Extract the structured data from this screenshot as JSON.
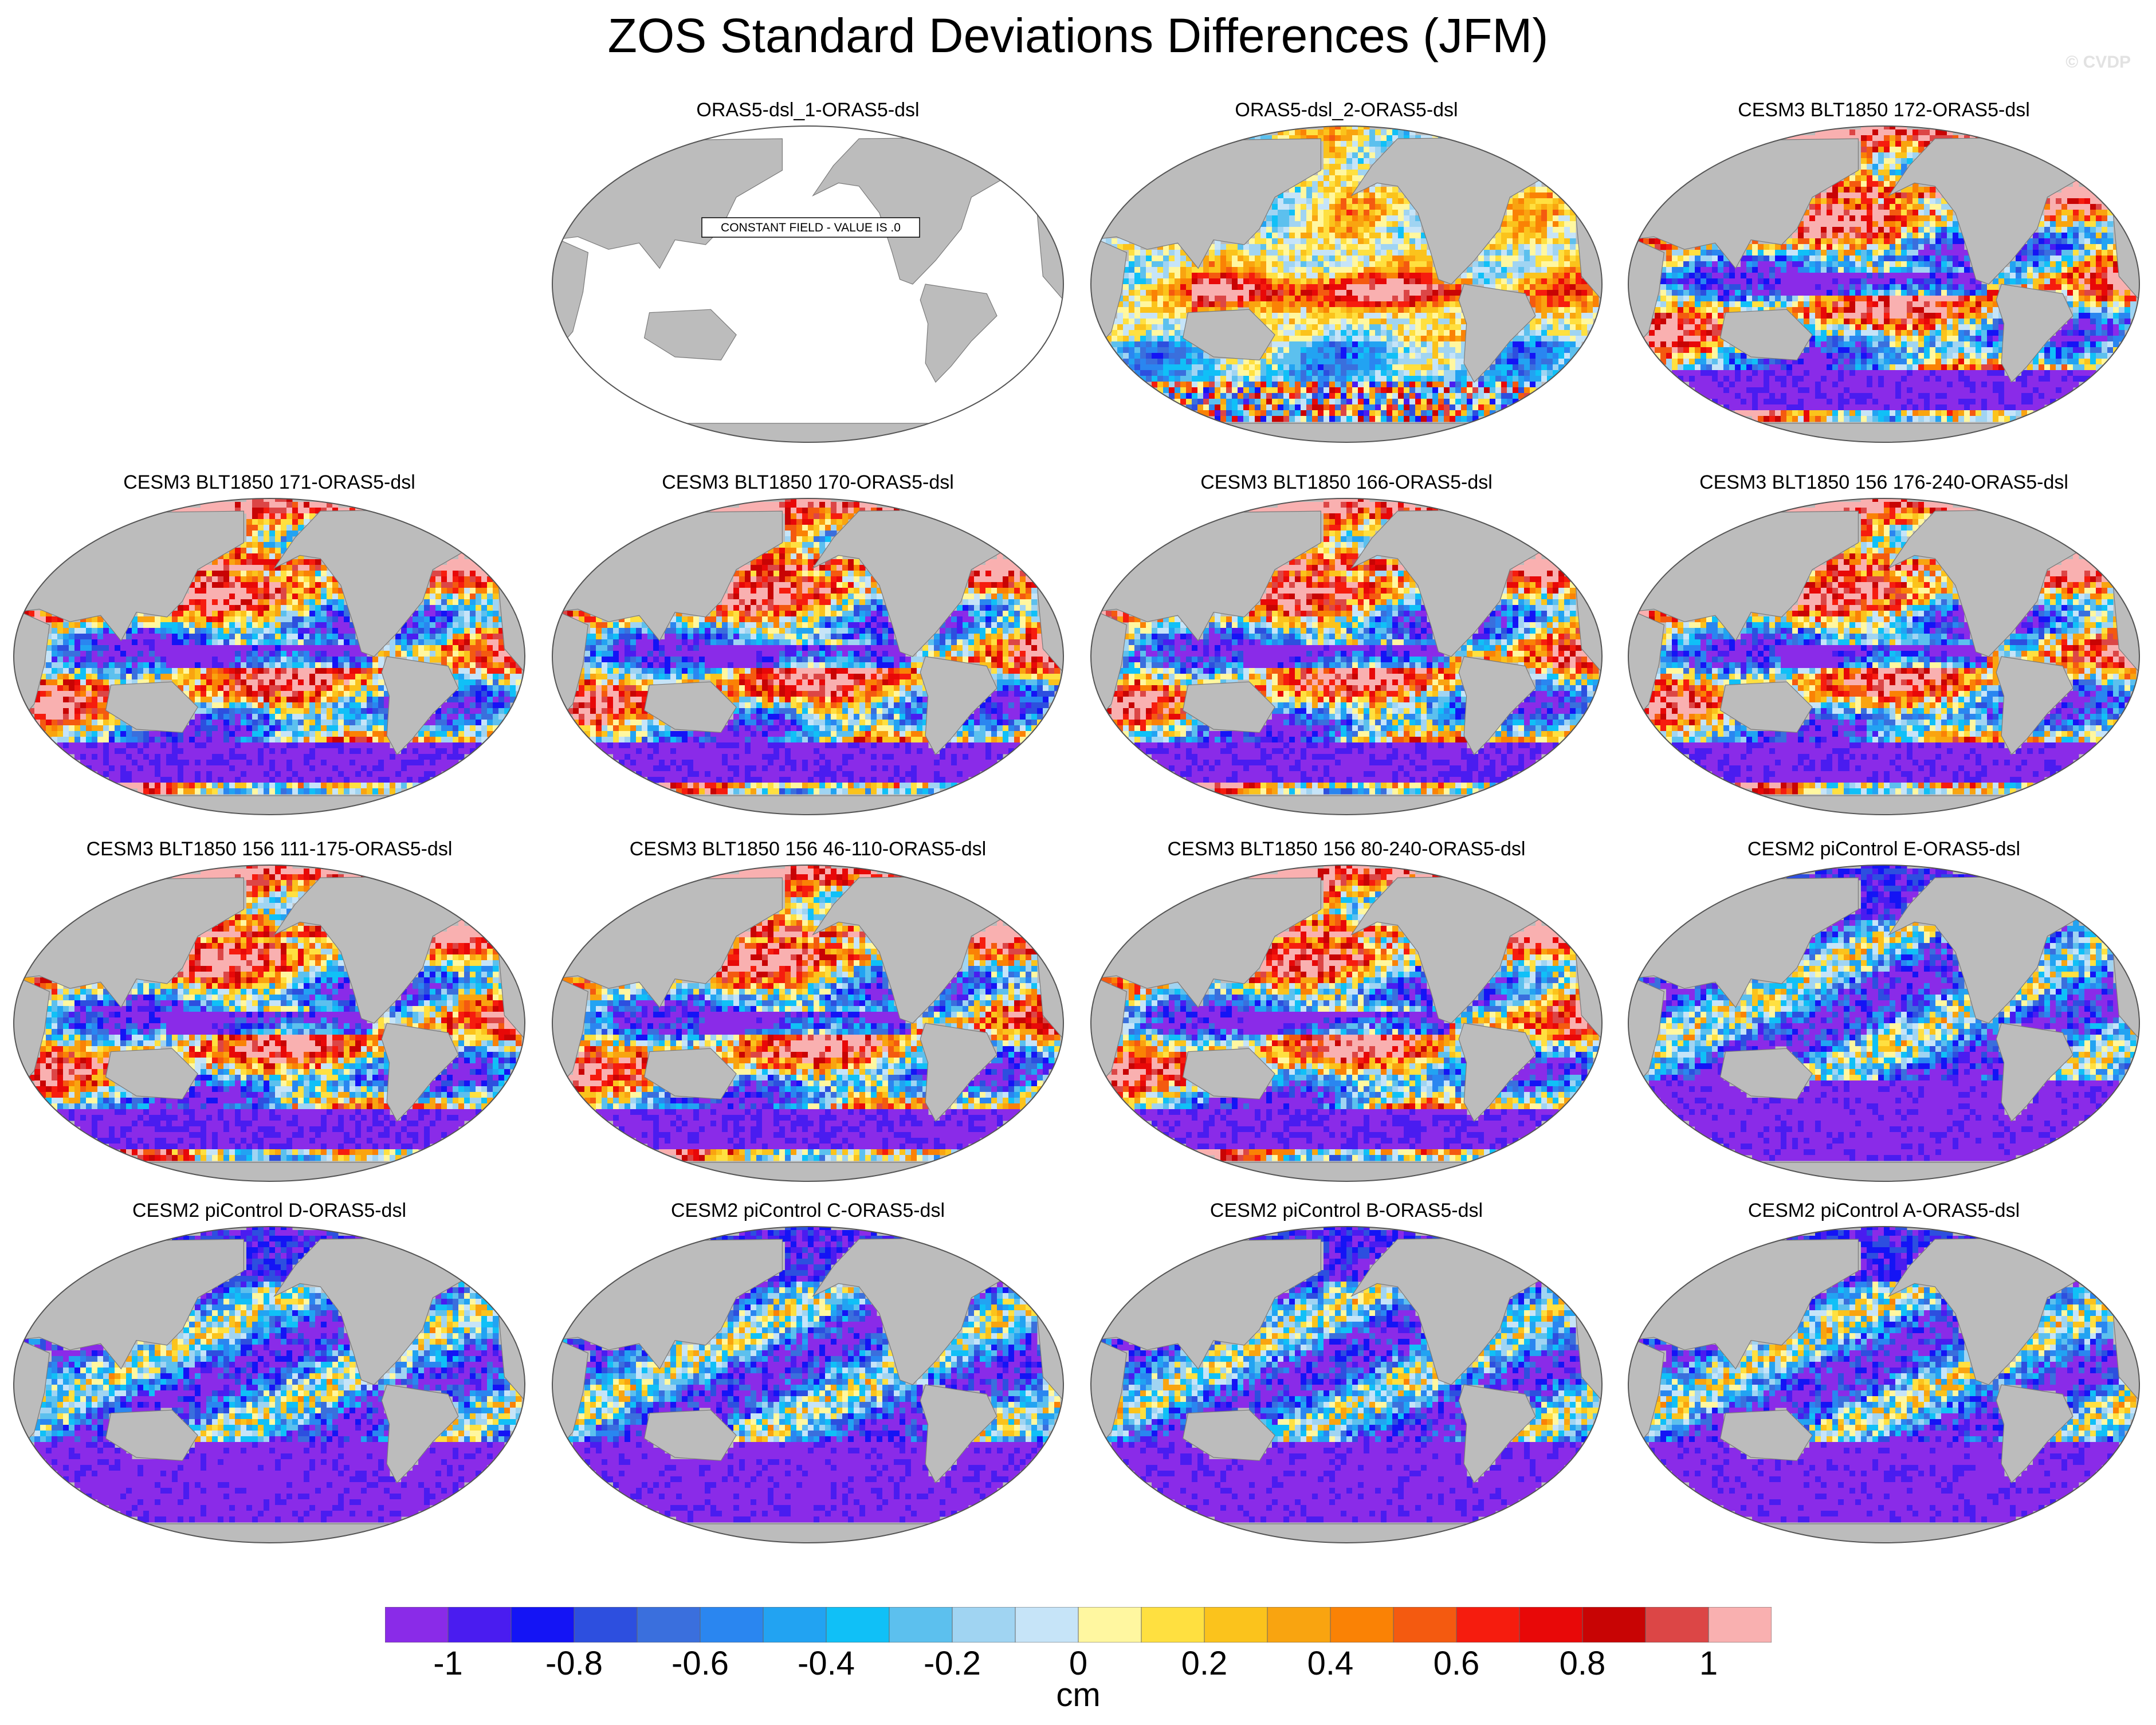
{
  "title": "ZOS Standard Deviations Differences (JFM)",
  "watermark": "© CVDP",
  "constant_field_label": "CONSTANT FIELD - VALUE IS .0",
  "units": "cm",
  "colorbar": {
    "colors": [
      "#8a2be8",
      "#4a1cf0",
      "#1414f5",
      "#2d4fdf",
      "#3a6fdd",
      "#2a86f0",
      "#22a3f2",
      "#10c0f7",
      "#5cc0ee",
      "#a0d4f2",
      "#c6e4f8",
      "#fff7a0",
      "#ffe040",
      "#fbc31c",
      "#f9a410",
      "#fa8205",
      "#f45a10",
      "#f61c0e",
      "#e80808",
      "#c80404",
      "#dc4646",
      "#f9b0b0"
    ],
    "tick_labels": [
      "-1",
      "-0.8",
      "-0.6",
      "-0.4",
      "-0.2",
      "0",
      "0.2",
      "0.4",
      "0.6",
      "0.8",
      "1"
    ],
    "levels": [
      -1,
      -0.9,
      -0.8,
      -0.7,
      -0.6,
      -0.5,
      -0.4,
      -0.3,
      -0.2,
      -0.1,
      0,
      0.1,
      0.2,
      0.3,
      0.4,
      0.5,
      0.6,
      0.7,
      0.8,
      0.9,
      1
    ]
  },
  "panels": [
    {
      "title": "ORAS5-dsl_1-ORAS5-dsl",
      "constant": true
    },
    {
      "title": "ORAS5-dsl_2-ORAS5-dsl",
      "scheme": "oras"
    },
    {
      "title": "CESM3 BLT1850 172-ORAS5-dsl",
      "scheme": "cesm3"
    },
    {
      "title": "CESM3 BLT1850 171-ORAS5-dsl",
      "scheme": "cesm3"
    },
    {
      "title": "CESM3 BLT1850 170-ORAS5-dsl",
      "scheme": "cesm3"
    },
    {
      "title": "CESM3 BLT1850 166-ORAS5-dsl",
      "scheme": "cesm3"
    },
    {
      "title": "CESM3 BLT1850 156 176-240-ORAS5-dsl",
      "scheme": "cesm3"
    },
    {
      "title": "CESM3 BLT1850 156 111-175-ORAS5-dsl",
      "scheme": "cesm3"
    },
    {
      "title": "CESM3 BLT1850 156 46-110-ORAS5-dsl",
      "scheme": "cesm3"
    },
    {
      "title": "CESM3 BLT1850 156 80-240-ORAS5-dsl",
      "scheme": "cesm3"
    },
    {
      "title": "CESM2 piControl E-ORAS5-dsl",
      "scheme": "cesm2"
    },
    {
      "title": "CESM2 piControl D-ORAS5-dsl",
      "scheme": "cesm2"
    },
    {
      "title": "CESM2 piControl C-ORAS5-dsl",
      "scheme": "cesm2"
    },
    {
      "title": "CESM2 piControl B-ORAS5-dsl",
      "scheme": "cesm2"
    },
    {
      "title": "CESM2 piControl A-ORAS5-dsl",
      "scheme": "cesm2"
    }
  ]
}
